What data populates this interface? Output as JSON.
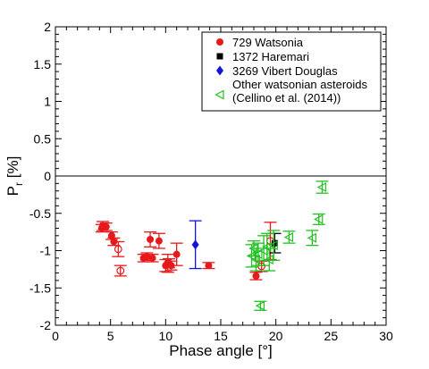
{
  "chart_data": {
    "type": "scatter",
    "xlabel": "Phase angle [°]",
    "ylabel_main": "P",
    "ylabel_sub": "r",
    "ylabel_unit": " [%]",
    "xlim": [
      0,
      30
    ],
    "ylim": [
      -2,
      2
    ],
    "x_ticks": [
      0,
      5,
      10,
      15,
      20,
      25,
      30
    ],
    "y_ticks": [
      -2,
      -1.5,
      -1,
      -0.5,
      0,
      0.5,
      1,
      1.5,
      2
    ],
    "x_tick_labels": [
      "0",
      "5",
      "10",
      "15",
      "20",
      "25",
      "30"
    ],
    "y_tick_labels": [
      "-2",
      "-1.5",
      "-1",
      "-0.5",
      "0",
      "0.5",
      "1",
      "1.5",
      "2"
    ],
    "grid": false,
    "zero_line": true,
    "legend_position": "top-right",
    "legend": [
      {
        "label": "729 Watsonia",
        "marker": "circle-filled",
        "color": "#e8191a"
      },
      {
        "label": "1372 Haremari",
        "marker": "square-filled",
        "color": "#000000"
      },
      {
        "label": "3269 Vibert Douglas",
        "marker": "diamond-filled",
        "color": "#1414d8"
      },
      {
        "label": "Other watsonian asteroids",
        "label2": "(Cellino et al. (2014))",
        "marker": "triangle-left-open",
        "color": "#22c222"
      }
    ],
    "series": [
      {
        "name": "729 Watsonia",
        "marker": "circle-filled",
        "color": "#e8191a",
        "points": [
          {
            "x": 4.2,
            "y": -0.7,
            "err": 0.05
          },
          {
            "x": 4.3,
            "y": -0.67,
            "err": 0.06
          },
          {
            "x": 4.6,
            "y": -0.68,
            "err": 0.05
          },
          {
            "x": 5.1,
            "y": -0.8,
            "err": 0.05
          },
          {
            "x": 5.3,
            "y": -0.88,
            "err": 0.05
          },
          {
            "x": 8.0,
            "y": -1.1,
            "err": 0.05
          },
          {
            "x": 8.3,
            "y": -1.08,
            "err": 0.05
          },
          {
            "x": 8.6,
            "y": -0.85,
            "err": 0.1
          },
          {
            "x": 8.8,
            "y": -1.1,
            "err": 0.05
          },
          {
            "x": 9.4,
            "y": -0.87,
            "err": 0.1
          },
          {
            "x": 10.0,
            "y": -1.2,
            "err": 0.08
          },
          {
            "x": 10.3,
            "y": -1.17,
            "err": 0.06
          },
          {
            "x": 10.5,
            "y": -1.2,
            "err": 0.06
          },
          {
            "x": 11.0,
            "y": -1.05,
            "err": 0.15
          },
          {
            "x": 13.9,
            "y": -1.2,
            "err": 0.04
          },
          {
            "x": 18.2,
            "y": -1.34,
            "err": 0.05
          }
        ]
      },
      {
        "name": "729 Watsonia",
        "marker": "circle-open",
        "color": "#e8191a",
        "points": [
          {
            "x": 5.7,
            "y": -0.98,
            "err": 0.1
          },
          {
            "x": 5.9,
            "y": -1.27,
            "err": 0.07
          },
          {
            "x": 10.2,
            "y": -1.17,
            "err": 0.12
          },
          {
            "x": 18.7,
            "y": -1.21,
            "err": 0.07
          },
          {
            "x": 19.5,
            "y": -0.87,
            "err": 0.25
          }
        ]
      },
      {
        "name": "1372 Haremari",
        "marker": "square-filled",
        "color": "#000000",
        "points": [
          {
            "x": 19.9,
            "y": -0.9,
            "err": 0.13
          }
        ]
      },
      {
        "name": "3269 Vibert Douglas",
        "marker": "diamond-filled",
        "color": "#1414d8",
        "points": [
          {
            "x": 12.7,
            "y": -0.92,
            "err": 0.32
          }
        ]
      },
      {
        "name": "Other watsonian asteroids",
        "marker": "triangle-left-open",
        "color": "#22c222",
        "points": [
          {
            "x": 17.8,
            "y": -1.07,
            "err": 0.15
          },
          {
            "x": 18.0,
            "y": -0.97,
            "err": 0.1
          },
          {
            "x": 18.2,
            "y": -1.12,
            "err": 0.15
          },
          {
            "x": 18.4,
            "y": -1.05,
            "err": 0.15
          },
          {
            "x": 18.6,
            "y": -1.74,
            "err": 0.06
          },
          {
            "x": 18.9,
            "y": -1.0,
            "err": 0.2
          },
          {
            "x": 19.2,
            "y": -0.95,
            "err": 0.18
          },
          {
            "x": 19.4,
            "y": -1.12,
            "err": 0.15
          },
          {
            "x": 19.8,
            "y": -0.93,
            "err": 0.2
          },
          {
            "x": 21.2,
            "y": -0.82,
            "err": 0.08
          },
          {
            "x": 23.3,
            "y": -0.83,
            "err": 0.1
          },
          {
            "x": 23.9,
            "y": -0.58,
            "err": 0.07
          },
          {
            "x": 24.2,
            "y": -0.15,
            "err": 0.08
          }
        ]
      }
    ]
  }
}
